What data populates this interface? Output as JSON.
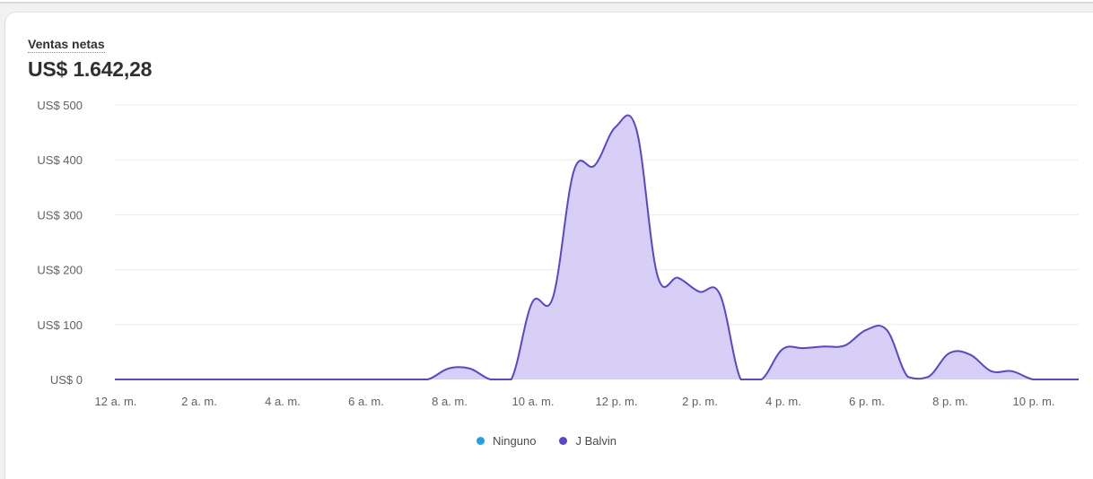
{
  "card": {
    "metric_label": "Ventas netas",
    "metric_value": "US$ 1.642,28"
  },
  "colors": {
    "series_line": "#5b45cf",
    "series_fill": "#d8cff7",
    "ninguno_dot": "#1ba4e3",
    "grid": "#ececec",
    "axis_text": "#616161"
  },
  "legend": [
    {
      "label": "Ninguno",
      "color": "#1ba4e3"
    },
    {
      "label": "J Balvin",
      "color": "#5b45cf"
    }
  ],
  "chart_data": {
    "type": "area",
    "title": "",
    "xlabel": "",
    "ylabel": "",
    "ylim": [
      0,
      500
    ],
    "y_ticks": [
      0,
      100,
      200,
      300,
      400,
      500
    ],
    "y_tick_labels": [
      "US$ 0",
      "US$ 100",
      "US$ 200",
      "US$ 300",
      "US$ 400",
      "US$ 500"
    ],
    "x_tick_labels": [
      "12 a. m.",
      "2 a. m.",
      "4 a. m.",
      "6 a. m.",
      "8 a. m.",
      "10 a. m.",
      "12 p. m.",
      "2 p. m.",
      "4 p. m.",
      "6 p. m.",
      "8 p. m.",
      "10 p. m."
    ],
    "x_tick_hours": [
      0,
      2,
      4,
      6,
      8,
      10,
      12,
      14,
      16,
      18,
      20,
      22
    ],
    "grid": true,
    "legend_position": "bottom-center",
    "series": [
      {
        "name": "J Balvin",
        "x": [
          0,
          1,
          2,
          3,
          4,
          5,
          6,
          7,
          7.5,
          8,
          8.5,
          9,
          9.5,
          10,
          10.5,
          11,
          11.5,
          12,
          12.5,
          13,
          13.5,
          14,
          14.5,
          15,
          15.5,
          16,
          16.5,
          17,
          17.5,
          18,
          18.5,
          19,
          19.5,
          20,
          20.5,
          21,
          21.5,
          22,
          22.5,
          23
        ],
        "values": [
          0,
          0,
          0,
          0,
          0,
          0,
          0,
          0,
          0,
          20,
          20,
          0,
          0,
          140,
          150,
          380,
          390,
          460,
          455,
          190,
          185,
          160,
          155,
          0,
          0,
          55,
          57,
          60,
          62,
          90,
          90,
          5,
          5,
          48,
          45,
          15,
          15,
          0,
          0,
          0
        ]
      },
      {
        "name": "Ninguno",
        "x": [],
        "values": []
      }
    ]
  }
}
